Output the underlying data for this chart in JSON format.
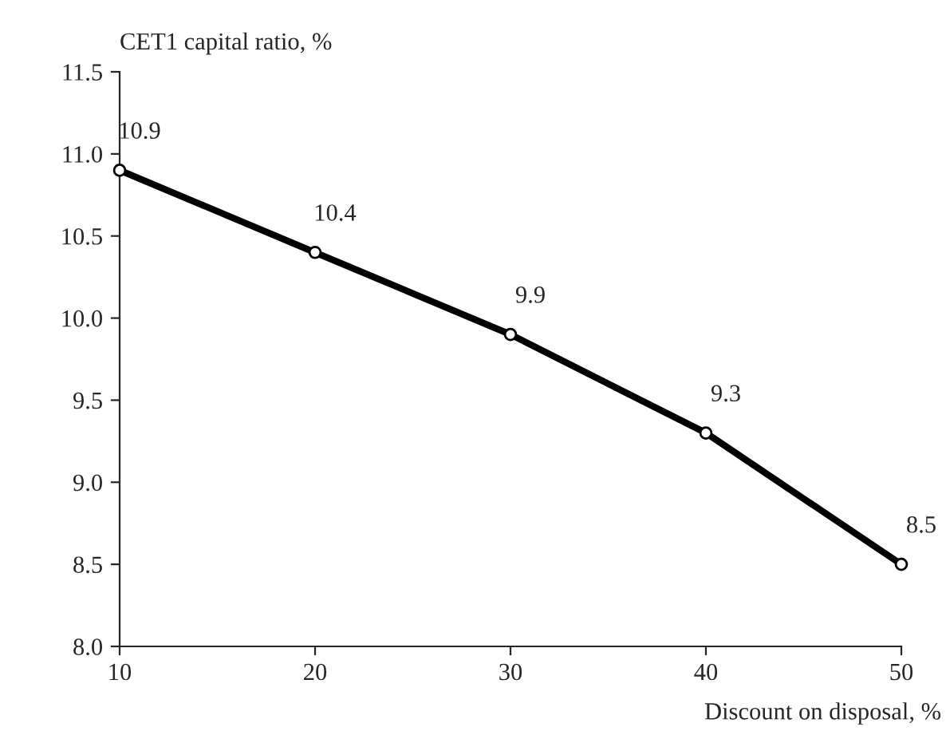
{
  "chart_data": {
    "type": "line",
    "ylabel": "CET1 capital ratio, %",
    "xlabel": "Discount on disposal, %",
    "x": [
      10,
      20,
      30,
      40,
      50
    ],
    "series": [
      {
        "color": "#000000",
        "values": [
          10.9,
          10.4,
          9.9,
          9.3,
          8.5
        ]
      }
    ],
    "data_labels": true,
    "marker": "circle",
    "line_style": "solid",
    "grid": false,
    "legend": false,
    "xlim": [
      10,
      50
    ],
    "xticks": [
      10,
      20,
      30,
      40,
      50
    ],
    "ylim": [
      8.0,
      11.5
    ],
    "yticks": [
      {
        "value": 8.0,
        "label": "8.0"
      },
      {
        "value": 8.5,
        "label": "8.5"
      },
      {
        "value": 9.0,
        "label": "9.0"
      },
      {
        "value": 9.5,
        "label": "9.5"
      },
      {
        "value": 10.0,
        "label": "10.0"
      },
      {
        "value": 10.5,
        "label": "10.5"
      },
      {
        "value": 11.0,
        "label": "11.0"
      },
      {
        "value": 11.5,
        "label": "11.5"
      }
    ]
  }
}
